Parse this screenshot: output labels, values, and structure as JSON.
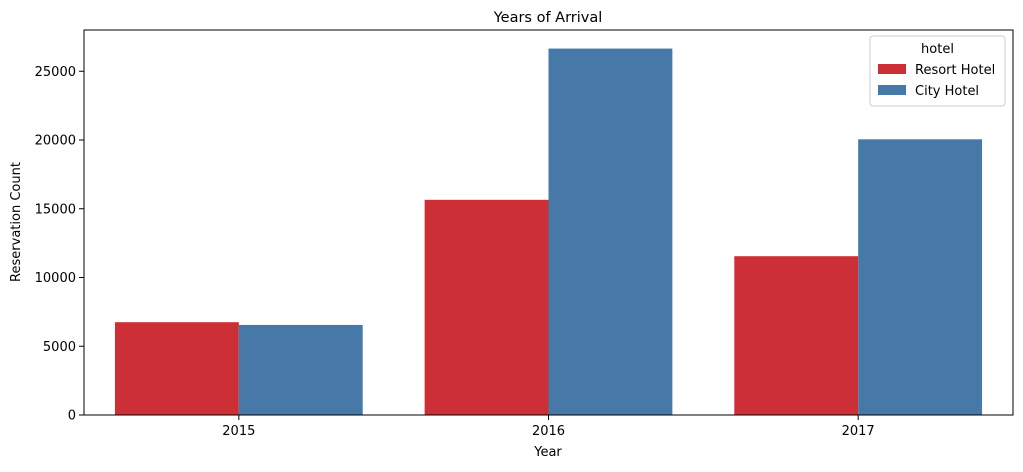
{
  "chart_data": {
    "type": "bar",
    "title": "Years of Arrival",
    "xlabel": "Year",
    "ylabel": "Reservation Count",
    "categories": [
      "2015",
      "2016",
      "2017"
    ],
    "series": [
      {
        "name": "Resort Hotel",
        "color": "#cc2f35",
        "values": [
          6750,
          15650,
          11550
        ]
      },
      {
        "name": "City Hotel",
        "color": "#4679a8",
        "values": [
          6550,
          26650,
          20050
        ]
      }
    ],
    "ylim": [
      0,
      28000
    ],
    "yticks": [
      0,
      5000,
      10000,
      15000,
      20000,
      25000
    ],
    "ytick_labels": [
      "0",
      "5000",
      "10000",
      "15000",
      "20000",
      "25000"
    ],
    "grid": false,
    "legend": {
      "title": "hotel",
      "placement": "top-right"
    }
  }
}
